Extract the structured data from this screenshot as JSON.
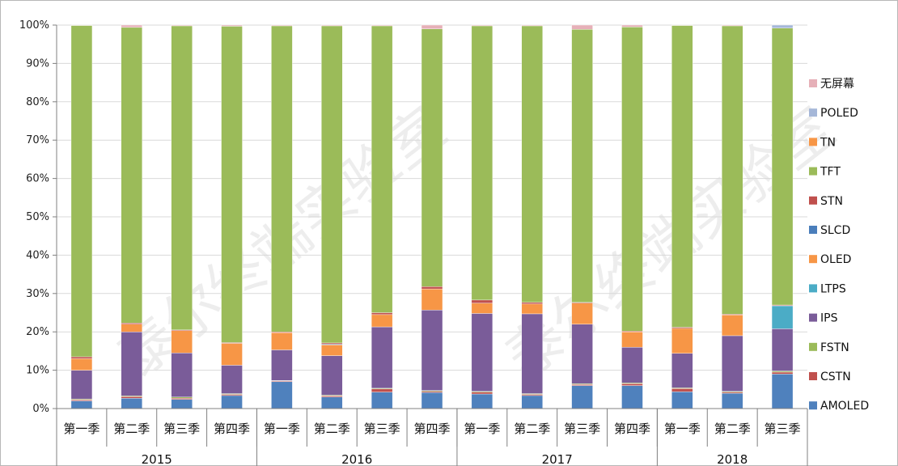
{
  "chart_data": {
    "type": "bar",
    "stacked": true,
    "percent": true,
    "watermark": "泰尔终端实验室",
    "categories": [
      "第一季",
      "第二季",
      "第三季",
      "第四季",
      "第一季",
      "第二季",
      "第三季",
      "第四季",
      "第一季",
      "第二季",
      "第三季",
      "第四季",
      "第一季",
      "第二季",
      "第三季"
    ],
    "years": [
      "2015",
      "2016",
      "2017",
      "2018"
    ],
    "year_counts": [
      4,
      4,
      4,
      3
    ],
    "y_ticks": [
      "0%",
      "10%",
      "20%",
      "30%",
      "40%",
      "50%",
      "60%",
      "70%",
      "80%",
      "90%",
      "100%"
    ],
    "ylim": [
      0,
      100
    ],
    "legend_position": "right",
    "series": [
      {
        "name": "AMOLED",
        "color": "#4f81bd",
        "values": [
          2,
          2.7,
          2.4,
          3.4,
          7,
          3,
          4.3,
          4.2,
          3.8,
          3.4,
          6,
          6,
          4.4,
          4,
          9
        ]
      },
      {
        "name": "CSTN",
        "color": "#c0504d",
        "values": [
          0.3,
          0.4,
          0.3,
          0.3,
          0.2,
          0.3,
          0.8,
          0.3,
          0.5,
          0.3,
          0.3,
          0.5,
          0.8,
          0.3,
          0.5
        ]
      },
      {
        "name": "FSTN",
        "color": "#9bbb59",
        "values": [
          0.2,
          0.2,
          0.3,
          0.2,
          0.1,
          0.2,
          0.2,
          0.2,
          0.2,
          0.2,
          0.2,
          0.2,
          0.2,
          0.2,
          0.3
        ]
      },
      {
        "name": "IPS",
        "color": "#7a5c99",
        "values": [
          7.5,
          16.7,
          11.5,
          7.4,
          8,
          10.3,
          16,
          21,
          20.3,
          20.8,
          15.5,
          9.3,
          9,
          14.5,
          11
        ]
      },
      {
        "name": "LTPS",
        "color": "#4bacc6",
        "values": [
          0,
          0,
          0,
          0,
          0,
          0,
          0,
          0,
          0,
          0,
          0,
          0,
          0,
          0,
          6
        ]
      },
      {
        "name": "OLED",
        "color": "#f79646",
        "values": [
          3,
          2,
          5.8,
          5.7,
          4.5,
          2.8,
          3.2,
          5.5,
          2.7,
          2.6,
          5.5,
          4,
          6.5,
          5.4,
          0
        ]
      },
      {
        "name": "SLCD",
        "color": "#4a7ebb",
        "values": [
          0,
          0,
          0,
          0,
          0,
          0.2,
          0,
          0,
          0,
          0,
          0,
          0,
          0,
          0,
          0
        ]
      },
      {
        "name": "STN",
        "color": "#c0504d",
        "values": [
          0.5,
          0.3,
          0.2,
          0.2,
          0.2,
          0.3,
          0.5,
          0.6,
          0.8,
          0.4,
          0.2,
          0.2,
          0.3,
          0.2,
          0.2
        ]
      },
      {
        "name": "TFT",
        "color": "#9bbb59",
        "values": [
          86.4,
          77.1,
          79.3,
          82.5,
          79.8,
          82.7,
          74.8,
          67.2,
          71.5,
          72.1,
          71.2,
          79.3,
          78.7,
          75.2,
          72.2
        ]
      },
      {
        "name": "TN",
        "color": "#f79646",
        "values": [
          0,
          0,
          0,
          0,
          0,
          0,
          0,
          0,
          0,
          0,
          0,
          0,
          0,
          0,
          0
        ]
      },
      {
        "name": "POLED",
        "color": "#a5b7d8",
        "values": [
          0,
          0,
          0,
          0,
          0,
          0,
          0,
          0,
          0,
          0,
          0,
          0,
          0,
          0,
          0.8
        ]
      },
      {
        "name": "无屏幕",
        "color": "#e6b0b8",
        "values": [
          0.1,
          0.6,
          0.2,
          0.3,
          0.2,
          0.2,
          0.2,
          1,
          0.2,
          0.2,
          1.1,
          0.5,
          0.1,
          0.2,
          0
        ]
      }
    ]
  }
}
